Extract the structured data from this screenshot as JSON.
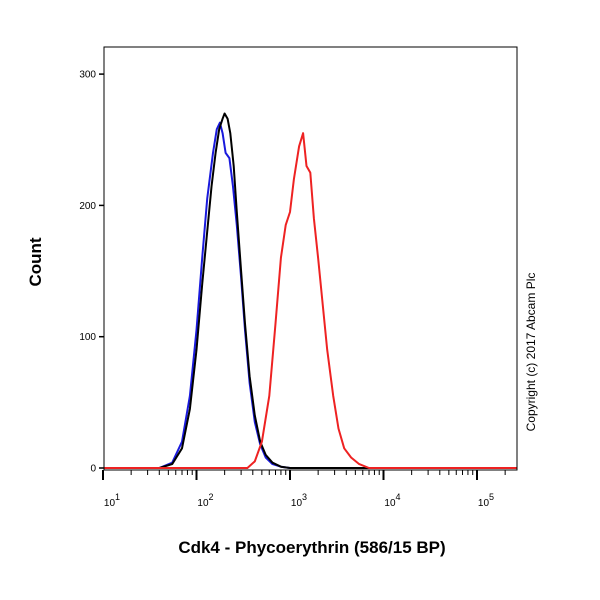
{
  "chart_data": {
    "type": "line",
    "xlabel": "Cdk4 - Phycoerythrin (586/15 BP)",
    "ylabel": "Count",
    "x_scale": "log",
    "xlim": [
      10,
      270000
    ],
    "ylim": [
      0,
      322
    ],
    "y_ticks": [
      0,
      100,
      200,
      300
    ],
    "x_ticks": [
      {
        "base": "10",
        "exp": "1",
        "value": 10
      },
      {
        "base": "10",
        "exp": "2",
        "value": 100
      },
      {
        "base": "10",
        "exp": "3",
        "value": 1000
      },
      {
        "base": "10",
        "exp": "4",
        "value": 10000
      },
      {
        "base": "10",
        "exp": "5",
        "value": 100000
      }
    ],
    "grid": false,
    "annotation": "Copyright (c) 2017 Abcam Plc",
    "series": [
      {
        "color": "#1a1adc",
        "points": [
          [
            10,
            0
          ],
          [
            40,
            0
          ],
          [
            55,
            4
          ],
          [
            70,
            20
          ],
          [
            85,
            55
          ],
          [
            100,
            105
          ],
          [
            115,
            160
          ],
          [
            130,
            205
          ],
          [
            150,
            240
          ],
          [
            165,
            258
          ],
          [
            178,
            263
          ],
          [
            190,
            255
          ],
          [
            205,
            240
          ],
          [
            225,
            236
          ],
          [
            245,
            215
          ],
          [
            270,
            185
          ],
          [
            300,
            145
          ],
          [
            330,
            105
          ],
          [
            370,
            65
          ],
          [
            420,
            35
          ],
          [
            480,
            18
          ],
          [
            550,
            8
          ],
          [
            650,
            3
          ],
          [
            800,
            1
          ],
          [
            1000,
            0
          ],
          [
            270000,
            0
          ]
        ]
      },
      {
        "color": "#000000",
        "points": [
          [
            10,
            0
          ],
          [
            40,
            0
          ],
          [
            55,
            3
          ],
          [
            70,
            15
          ],
          [
            85,
            45
          ],
          [
            100,
            90
          ],
          [
            115,
            140
          ],
          [
            130,
            180
          ],
          [
            145,
            215
          ],
          [
            160,
            240
          ],
          [
            175,
            258
          ],
          [
            190,
            266
          ],
          [
            200,
            270
          ],
          [
            215,
            266
          ],
          [
            230,
            255
          ],
          [
            250,
            230
          ],
          [
            270,
            195
          ],
          [
            300,
            150
          ],
          [
            330,
            110
          ],
          [
            370,
            70
          ],
          [
            420,
            40
          ],
          [
            480,
            20
          ],
          [
            550,
            10
          ],
          [
            650,
            4
          ],
          [
            800,
            1
          ],
          [
            1000,
            0
          ],
          [
            270000,
            0
          ]
        ]
      },
      {
        "color": "#ee2222",
        "points": [
          [
            10,
            0
          ],
          [
            350,
            0
          ],
          [
            420,
            5
          ],
          [
            500,
            20
          ],
          [
            600,
            55
          ],
          [
            700,
            110
          ],
          [
            800,
            160
          ],
          [
            900,
            185
          ],
          [
            1000,
            195
          ],
          [
            1100,
            220
          ],
          [
            1250,
            245
          ],
          [
            1380,
            255
          ],
          [
            1500,
            230
          ],
          [
            1650,
            225
          ],
          [
            1800,
            190
          ],
          [
            2000,
            160
          ],
          [
            2200,
            130
          ],
          [
            2500,
            90
          ],
          [
            2900,
            55
          ],
          [
            3300,
            30
          ],
          [
            3800,
            15
          ],
          [
            4500,
            8
          ],
          [
            5500,
            3
          ],
          [
            7000,
            0
          ],
          [
            270000,
            0
          ]
        ]
      }
    ]
  }
}
